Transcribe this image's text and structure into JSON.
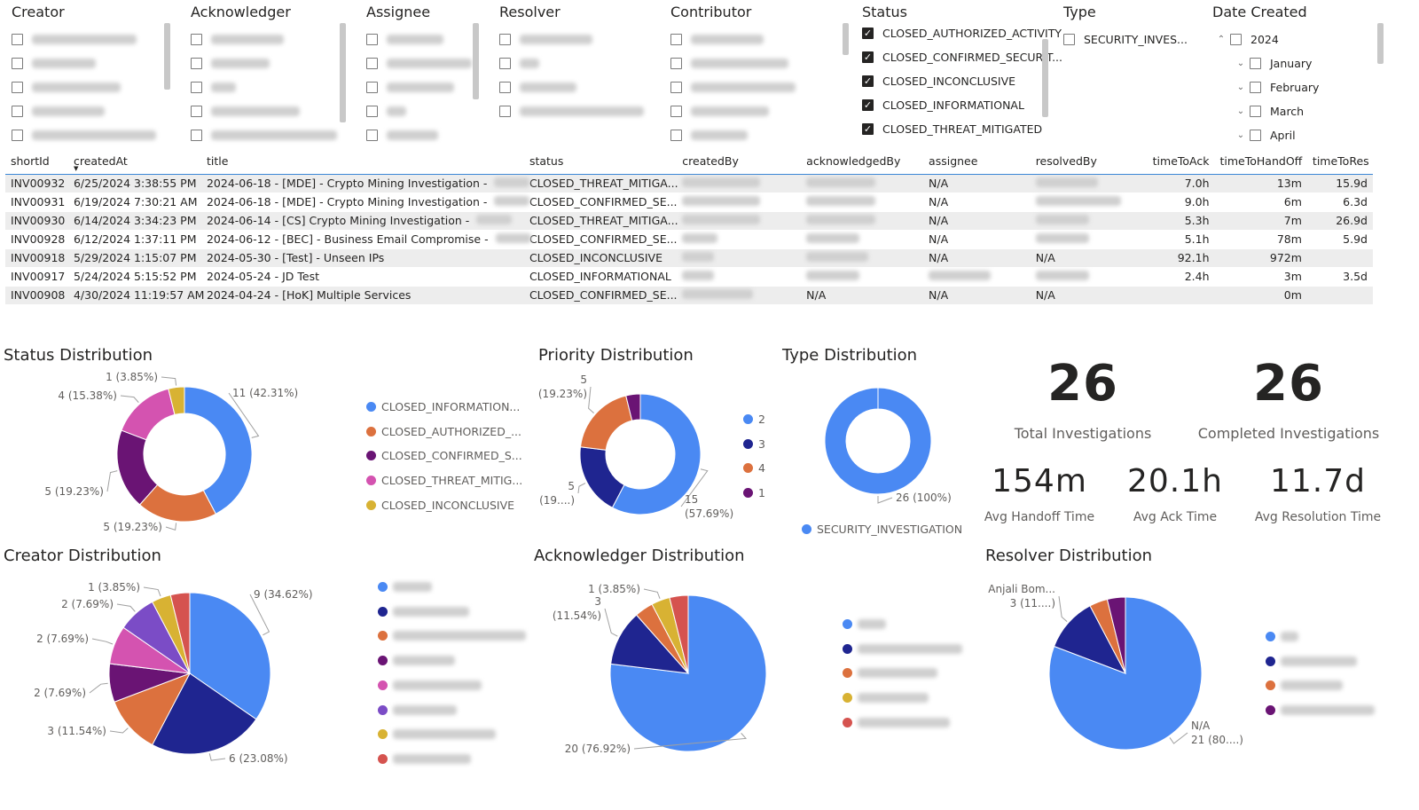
{
  "colors": {
    "blue": "#4a89f3",
    "navy": "#1f2590",
    "orange": "#dc713e",
    "purple": "#6a1474",
    "pink": "#d453b0",
    "gold": "#d8b233",
    "violet": "#7b4cc6",
    "red": "#d5534f"
  },
  "slicers": {
    "creator": {
      "title": "Creator",
      "items": [
        {
          "w": 118
        },
        {
          "w": 72
        },
        {
          "w": 100
        },
        {
          "w": 82
        },
        {
          "w": 140
        }
      ]
    },
    "acknowledger": {
      "title": "Acknowledger",
      "items": [
        {
          "w": 82
        },
        {
          "w": 66
        },
        {
          "w": 28
        },
        {
          "w": 100
        },
        {
          "w": 142
        }
      ]
    },
    "assignee": {
      "title": "Assignee",
      "items": [
        {
          "w": 64
        },
        {
          "w": 96
        },
        {
          "w": 76
        },
        {
          "w": 22
        },
        {
          "w": 58
        }
      ]
    },
    "resolver": {
      "title": "Resolver",
      "items": [
        {
          "w": 82
        },
        {
          "w": 22
        },
        {
          "w": 64
        },
        {
          "w": 140
        }
      ]
    },
    "contributor": {
      "title": "Contributor",
      "items": [
        {
          "w": 82
        },
        {
          "w": 110
        },
        {
          "w": 118
        },
        {
          "w": 88
        },
        {
          "w": 64
        }
      ]
    },
    "status": {
      "title": "Status",
      "items": [
        {
          "label": "CLOSED_AUTHORIZED_ACTIVITY",
          "checked": true
        },
        {
          "label": "CLOSED_CONFIRMED_SECURIT...",
          "checked": true
        },
        {
          "label": "CLOSED_INCONCLUSIVE",
          "checked": true
        },
        {
          "label": "CLOSED_INFORMATIONAL",
          "checked": true
        },
        {
          "label": "CLOSED_THREAT_MITIGATED",
          "checked": true
        }
      ]
    },
    "type": {
      "title": "Type",
      "items": [
        {
          "label": "SECURITY_INVES...",
          "checked": false
        }
      ]
    },
    "date": {
      "title": "Date Created",
      "year": "2024",
      "months": [
        "January",
        "February",
        "March",
        "April"
      ]
    }
  },
  "table": {
    "columns": [
      "shortId",
      "createdAt",
      "title",
      "status",
      "createdBy",
      "acknowledgedBy",
      "assignee",
      "resolvedBy",
      "timeToAck",
      "timeToHandOff",
      "timeToRes"
    ],
    "rows": [
      {
        "id": "INV00932",
        "created": "6/25/2024 3:38:55 PM",
        "title": "2024-06-18 - [MDE] - Crypto Mining Investigation -",
        "status": "CLOSED_THREAT_MITIGA...",
        "assignee": "N/A",
        "resolvedBy": "",
        "ack": "7.0h",
        "handoff": "13m",
        "res": "15.9d"
      },
      {
        "id": "INV00931",
        "created": "6/19/2024 7:30:21 AM",
        "title": "2024-06-18 - [MDE] - Crypto Mining Investigation -",
        "status": "CLOSED_CONFIRMED_SE...",
        "assignee": "N/A",
        "resolvedBy": "",
        "ack": "9.0h",
        "handoff": "6m",
        "res": "6.3d"
      },
      {
        "id": "INV00930",
        "created": "6/14/2024 3:34:23 PM",
        "title": "2024-06-14 - [CS] Crypto Mining Investigation -",
        "status": "CLOSED_THREAT_MITIGA...",
        "assignee": "N/A",
        "resolvedBy": "",
        "ack": "5.3h",
        "handoff": "7m",
        "res": "26.9d"
      },
      {
        "id": "INV00928",
        "created": "6/12/2024 1:37:11 PM",
        "title": "2024-06-12 - [BEC] - Business Email Compromise -",
        "status": "CLOSED_CONFIRMED_SE...",
        "assignee": "N/A",
        "resolvedBy": "",
        "ack": "5.1h",
        "handoff": "78m",
        "res": "5.9d"
      },
      {
        "id": "INV00918",
        "created": "5/29/2024 1:15:07 PM",
        "title": "2024-05-30 - [Test] - Unseen IPs",
        "status": "CLOSED_INCONCLUSIVE",
        "assignee": "N/A",
        "resolvedBy": "N/A",
        "ack": "92.1h",
        "handoff": "972m",
        "res": ""
      },
      {
        "id": "INV00917",
        "created": "5/24/2024 5:15:52 PM",
        "title": "2024-05-24 - JD Test",
        "status": "CLOSED_INFORMATIONAL",
        "assignee": "",
        "resolvedBy": "",
        "ack": "2.4h",
        "handoff": "3m",
        "res": "3.5d"
      },
      {
        "id": "INV00908",
        "created": "4/30/2024 11:19:57 AM",
        "title": "2024-04-24 - [HoK] Multiple Services",
        "status": "CLOSED_CONFIRMED_SE...",
        "ackBy": "N/A",
        "assignee": "N/A",
        "resolvedBy": "N/A",
        "ack": "",
        "handoff": "0m",
        "res": ""
      }
    ]
  },
  "kpis": {
    "total": {
      "value": "26",
      "label": "Total Investigations"
    },
    "completed": {
      "value": "26",
      "label": "Completed Investigations"
    },
    "handoff": {
      "value": "154m",
      "label": "Avg Handoff Time"
    },
    "ack": {
      "value": "20.1h",
      "label": "Avg Ack Time"
    },
    "resolution": {
      "value": "11.7d",
      "label": "Avg Resolution Time"
    }
  },
  "chart_data": [
    {
      "name": "status",
      "type": "donut",
      "title": "Status Distribution",
      "slices": [
        {
          "label": "CLOSED_INFORMATIONAL",
          "value": 11,
          "color": "#4a89f3",
          "dl": "11 (42.31%)"
        },
        {
          "label": "CLOSED_AUTHORIZED_ACTIVITY",
          "value": 5,
          "color": "#dc713e",
          "dl": "5 (19.23%)"
        },
        {
          "label": "CLOSED_CONFIRMED_SECURITY",
          "value": 5,
          "color": "#6a1474",
          "dl": "5 (19.23%)"
        },
        {
          "label": "CLOSED_THREAT_MITIGATED",
          "value": 4,
          "color": "#d453b0",
          "dl": "4 (15.38%)"
        },
        {
          "label": "CLOSED_INCONCLUSIVE",
          "value": 1,
          "color": "#d8b233",
          "dl": "1 (3.85%)"
        }
      ],
      "legend": [
        "CLOSED_INFORMATION...",
        "CLOSED_AUTHORIZED_...",
        "CLOSED_CONFIRMED_S...",
        "CLOSED_THREAT_MITIG...",
        "CLOSED_INCONCLUSIVE"
      ]
    },
    {
      "name": "priority",
      "type": "donut",
      "title": "Priority Distribution",
      "slices": [
        {
          "label": "2",
          "value": 15,
          "color": "#4a89f3",
          "dl": "15|(57.69%)"
        },
        {
          "label": "3",
          "value": 5,
          "color": "#1f2590",
          "dl": "5|(19....)"
        },
        {
          "label": "4",
          "value": 5,
          "color": "#dc713e",
          "dl": "5|(19.23%)"
        },
        {
          "label": "1",
          "value": 1,
          "color": "#6a1474",
          "dl": ""
        }
      ],
      "legend": [
        "2",
        "3",
        "4",
        "1"
      ]
    },
    {
      "name": "type",
      "type": "donut",
      "title": "Type Distribution",
      "slices": [
        {
          "label": "SECURITY_INVESTIGATION",
          "value": 26,
          "color": "#4a89f3",
          "dl": "26 (100%)"
        }
      ],
      "legend": [
        "SECURITY_INVESTIGATION"
      ]
    },
    {
      "name": "creator",
      "type": "pie",
      "title": "Creator Distribution",
      "slices": [
        {
          "value": 9,
          "color": "#4a89f3",
          "dl": "9 (34.62%)"
        },
        {
          "value": 6,
          "color": "#1f2590",
          "dl": "6 (23.08%)"
        },
        {
          "value": 3,
          "color": "#dc713e",
          "dl": "3 (11.54%)"
        },
        {
          "value": 2,
          "color": "#6a1474",
          "dl": "2 (7.69%)"
        },
        {
          "value": 2,
          "color": "#d453b0",
          "dl": "2 (7.69%)"
        },
        {
          "value": 2,
          "color": "#7b4cc6",
          "dl": "2 (7.69%)"
        },
        {
          "value": 1,
          "color": "#d8b233",
          "dl": "1 (3.85%)"
        },
        {
          "value": 1,
          "color": "#d5534f",
          "dl": ""
        }
      ]
    },
    {
      "name": "ack",
      "type": "pie",
      "title": "Acknowledger Distribution",
      "slices": [
        {
          "value": 20,
          "color": "#4a89f3",
          "dl": "20 (76.92%)"
        },
        {
          "value": 3,
          "color": "#1f2590",
          "dl": "3|(11.54%)"
        },
        {
          "value": 1,
          "color": "#dc713e",
          "dl": ""
        },
        {
          "value": 1,
          "color": "#d8b233",
          "dl": "1 (3.85%)"
        },
        {
          "value": 1,
          "color": "#d5534f",
          "dl": ""
        }
      ]
    },
    {
      "name": "resolver",
      "type": "pie",
      "title": "Resolver Distribution",
      "slices": [
        {
          "label": "N/A",
          "value": 21,
          "color": "#4a89f3",
          "dl": "N/A|21 (80....)"
        },
        {
          "label": "Anjali Bom...",
          "value": 3,
          "color": "#1f2590",
          "dl": "Anjali Bom...|3 (11....)"
        },
        {
          "value": 1,
          "color": "#dc713e",
          "dl": ""
        },
        {
          "value": 1,
          "color": "#6a1474",
          "dl": ""
        }
      ]
    }
  ]
}
